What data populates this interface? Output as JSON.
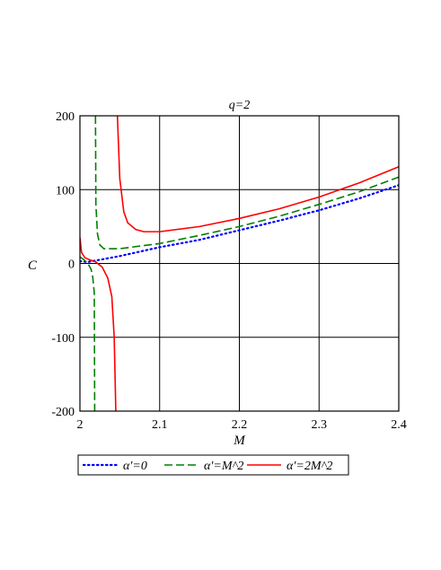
{
  "chart_data": {
    "type": "line",
    "title": "q=2",
    "xlabel": "M",
    "ylabel": "C",
    "xlim": [
      2.0,
      2.4
    ],
    "ylim": [
      -200,
      200
    ],
    "xticks": [
      2,
      2.1,
      2.2,
      2.3,
      2.4
    ],
    "xtick_labels": [
      "2",
      "2.1",
      "2.2",
      "2.3",
      "2.4"
    ],
    "yticks": [
      -200,
      -100,
      0,
      100,
      200
    ],
    "ytick_labels": [
      "-200",
      "-100",
      "0",
      "100",
      "200"
    ],
    "grid": true,
    "legend_position": "bottom",
    "series": [
      {
        "name": "α′=0",
        "color": "#0000ff",
        "dash": "dotted",
        "segments": [
          [
            [
              2.0,
              3
            ],
            [
              2.01,
              2
            ],
            [
              2.02,
              4
            ],
            [
              2.05,
              10
            ],
            [
              2.1,
              22
            ],
            [
              2.15,
              32
            ],
            [
              2.2,
              45
            ],
            [
              2.25,
              58
            ],
            [
              2.3,
              72
            ],
            [
              2.35,
              88
            ],
            [
              2.4,
              106
            ]
          ]
        ]
      },
      {
        "name": "α′=M^2",
        "color": "#008000",
        "dash": "dashed",
        "segments": [
          [
            [
              2.0,
              9
            ],
            [
              2.005,
              5
            ],
            [
              2.01,
              0
            ],
            [
              2.014,
              -8
            ],
            [
              2.016,
              -18
            ],
            [
              2.018,
              -40
            ],
            [
              2.0185,
              -200
            ]
          ],
          [
            [
              2.0195,
              200
            ],
            [
              2.02,
              80
            ],
            [
              2.022,
              40
            ],
            [
              2.025,
              25
            ],
            [
              2.03,
              20
            ],
            [
              2.05,
              20
            ],
            [
              2.1,
              27
            ],
            [
              2.15,
              38
            ],
            [
              2.2,
              50
            ],
            [
              2.25,
              64
            ],
            [
              2.3,
              80
            ],
            [
              2.35,
              97
            ],
            [
              2.4,
              117
            ]
          ]
        ]
      },
      {
        "name": "α′=2M^2",
        "color": "#ff0000",
        "dash": "solid",
        "segments": [
          [
            [
              2.0,
              35
            ],
            [
              2.002,
              15
            ],
            [
              2.006,
              8
            ],
            [
              2.012,
              5
            ],
            [
              2.02,
              2
            ],
            [
              2.028,
              -5
            ],
            [
              2.035,
              -20
            ],
            [
              2.04,
              -45
            ],
            [
              2.043,
              -100
            ],
            [
              2.045,
              -200
            ]
          ],
          [
            [
              2.047,
              200
            ],
            [
              2.05,
              115
            ],
            [
              2.055,
              70
            ],
            [
              2.06,
              55
            ],
            [
              2.07,
              46
            ],
            [
              2.08,
              43
            ],
            [
              2.1,
              43
            ],
            [
              2.15,
              50
            ],
            [
              2.2,
              61
            ],
            [
              2.25,
              74
            ],
            [
              2.3,
              90
            ],
            [
              2.35,
              109
            ],
            [
              2.4,
              131
            ]
          ]
        ]
      }
    ]
  }
}
